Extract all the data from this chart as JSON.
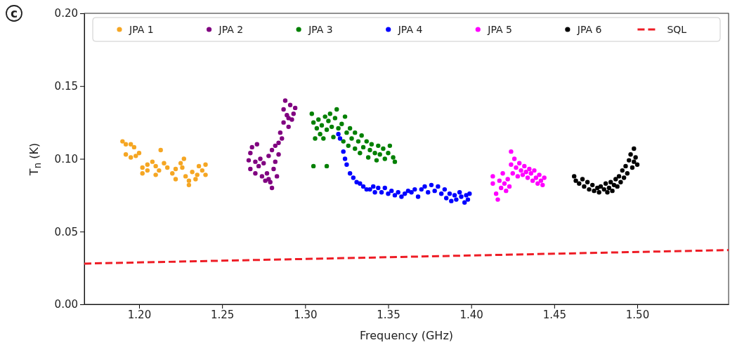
{
  "chart_data": {
    "type": "scatter",
    "xlabel": "Frequency (GHz)",
    "ylabel": "T$_{n}$ (K)",
    "annotations": [
      "c"
    ],
    "xlim": [
      1.167,
      1.555
    ],
    "ylim": [
      0,
      0.2
    ],
    "xticks": [
      {
        "value": 1.2,
        "label": "1.20"
      },
      {
        "value": 1.25,
        "label": "1.25"
      },
      {
        "value": 1.3,
        "label": "1.30"
      },
      {
        "value": 1.35,
        "label": "1.35"
      },
      {
        "value": 1.4,
        "label": "1.40"
      },
      {
        "value": 1.45,
        "label": "1.45"
      },
      {
        "value": 1.5,
        "label": "1.50"
      }
    ],
    "yticks": [
      {
        "value": 0,
        "label": "0.00"
      },
      {
        "value": 0.05,
        "label": "0.05"
      },
      {
        "value": 0.1,
        "label": "0.10"
      },
      {
        "value": 0.15,
        "label": "0.15"
      },
      {
        "value": 0.2,
        "label": "0.20"
      }
    ],
    "legend": "top",
    "marker": "circle",
    "series": [
      {
        "name": "JPA 1",
        "color": "#f5a623",
        "x": [
          1.19,
          1.192,
          1.195,
          1.197,
          1.192,
          1.195,
          1.198,
          1.2,
          1.202,
          1.202,
          1.205,
          1.205,
          1.208,
          1.21,
          1.21,
          1.212,
          1.213,
          1.215,
          1.217,
          1.22,
          1.222,
          1.222,
          1.225,
          1.226,
          1.227,
          1.228,
          1.23,
          1.23,
          1.232,
          1.234,
          1.235,
          1.236,
          1.238,
          1.24,
          1.24
        ],
        "values": [
          0.112,
          0.11,
          0.11,
          0.108,
          0.103,
          0.101,
          0.102,
          0.104,
          0.094,
          0.09,
          0.092,
          0.096,
          0.098,
          0.089,
          0.095,
          0.092,
          0.106,
          0.097,
          0.094,
          0.09,
          0.086,
          0.093,
          0.097,
          0.094,
          0.1,
          0.088,
          0.082,
          0.085,
          0.091,
          0.086,
          0.089,
          0.095,
          0.092,
          0.096,
          0.089
        ]
      },
      {
        "name": "JPA 2",
        "color": "#800080",
        "x": [
          1.266,
          1.267,
          1.267,
          1.268,
          1.27,
          1.27,
          1.271,
          1.272,
          1.273,
          1.274,
          1.275,
          1.276,
          1.277,
          1.278,
          1.278,
          1.279,
          1.28,
          1.28,
          1.281,
          1.282,
          1.282,
          1.283,
          1.284,
          1.284,
          1.285,
          1.286,
          1.287,
          1.287,
          1.288,
          1.289,
          1.29,
          1.29,
          1.291,
          1.292,
          1.293,
          1.294
        ],
        "values": [
          0.099,
          0.104,
          0.093,
          0.108,
          0.098,
          0.09,
          0.11,
          0.095,
          0.1,
          0.088,
          0.097,
          0.085,
          0.09,
          0.086,
          0.102,
          0.084,
          0.08,
          0.106,
          0.093,
          0.098,
          0.109,
          0.088,
          0.103,
          0.111,
          0.118,
          0.114,
          0.125,
          0.134,
          0.14,
          0.13,
          0.122,
          0.128,
          0.137,
          0.127,
          0.131,
          0.135
        ]
      },
      {
        "name": "JPA 3",
        "color": "#008000",
        "x": [
          1.304,
          1.305,
          1.306,
          1.307,
          1.308,
          1.309,
          1.31,
          1.311,
          1.312,
          1.313,
          1.314,
          1.315,
          1.316,
          1.317,
          1.318,
          1.319,
          1.32,
          1.322,
          1.323,
          1.324,
          1.325,
          1.326,
          1.327,
          1.328,
          1.33,
          1.33,
          1.332,
          1.333,
          1.334,
          1.335,
          1.337,
          1.338,
          1.339,
          1.34,
          1.342,
          1.343,
          1.344,
          1.345,
          1.347,
          1.348,
          1.35,
          1.351,
          1.353,
          1.354,
          1.305,
          1.313
        ],
        "values": [
          0.131,
          0.125,
          0.114,
          0.121,
          0.127,
          0.117,
          0.123,
          0.114,
          0.129,
          0.12,
          0.126,
          0.131,
          0.122,
          0.115,
          0.128,
          0.134,
          0.121,
          0.124,
          0.112,
          0.129,
          0.118,
          0.109,
          0.121,
          0.114,
          0.107,
          0.118,
          0.112,
          0.104,
          0.116,
          0.108,
          0.112,
          0.101,
          0.106,
          0.11,
          0.104,
          0.099,
          0.109,
          0.103,
          0.107,
          0.1,
          0.104,
          0.109,
          0.101,
          0.098,
          0.095,
          0.095
        ]
      },
      {
        "name": "JPA 4",
        "color": "#0000ff",
        "x": [
          1.32,
          1.321,
          1.323,
          1.324,
          1.325,
          1.327,
          1.329,
          1.331,
          1.333,
          1.335,
          1.337,
          1.339,
          1.341,
          1.342,
          1.344,
          1.346,
          1.348,
          1.35,
          1.352,
          1.354,
          1.356,
          1.358,
          1.36,
          1.362,
          1.364,
          1.366,
          1.368,
          1.37,
          1.372,
          1.374,
          1.376,
          1.378,
          1.38,
          1.382,
          1.384,
          1.385,
          1.387,
          1.388,
          1.39,
          1.391,
          1.393,
          1.394,
          1.396,
          1.397,
          1.398,
          1.399
        ],
        "values": [
          0.117,
          0.114,
          0.105,
          0.1,
          0.096,
          0.09,
          0.087,
          0.084,
          0.083,
          0.081,
          0.079,
          0.079,
          0.081,
          0.077,
          0.08,
          0.077,
          0.08,
          0.076,
          0.078,
          0.075,
          0.077,
          0.074,
          0.076,
          0.078,
          0.077,
          0.079,
          0.074,
          0.079,
          0.081,
          0.077,
          0.082,
          0.078,
          0.081,
          0.076,
          0.079,
          0.073,
          0.076,
          0.071,
          0.075,
          0.072,
          0.077,
          0.074,
          0.07,
          0.075,
          0.072,
          0.076
        ]
      },
      {
        "name": "JPA 5",
        "color": "#ff00ff",
        "x": [
          1.413,
          1.413,
          1.415,
          1.416,
          1.417,
          1.418,
          1.419,
          1.42,
          1.421,
          1.422,
          1.423,
          1.424,
          1.424,
          1.425,
          1.426,
          1.427,
          1.428,
          1.429,
          1.43,
          1.431,
          1.432,
          1.433,
          1.434,
          1.435,
          1.436,
          1.437,
          1.438,
          1.439,
          1.44,
          1.441,
          1.442,
          1.443,
          1.444
        ],
        "values": [
          0.088,
          0.083,
          0.076,
          0.072,
          0.085,
          0.08,
          0.09,
          0.083,
          0.078,
          0.086,
          0.081,
          0.096,
          0.105,
          0.09,
          0.1,
          0.094,
          0.088,
          0.097,
          0.092,
          0.089,
          0.095,
          0.091,
          0.087,
          0.093,
          0.09,
          0.085,
          0.092,
          0.087,
          0.083,
          0.089,
          0.085,
          0.082,
          0.087
        ]
      },
      {
        "name": "JPA 6",
        "color": "#000000",
        "x": [
          1.462,
          1.463,
          1.465,
          1.467,
          1.468,
          1.47,
          1.471,
          1.473,
          1.474,
          1.476,
          1.477,
          1.478,
          1.48,
          1.481,
          1.482,
          1.483,
          1.484,
          1.485,
          1.486,
          1.487,
          1.488,
          1.489,
          1.49,
          1.491,
          1.492,
          1.493,
          1.494,
          1.495,
          1.496,
          1.497,
          1.498,
          1.498,
          1.499,
          1.5
        ],
        "values": [
          0.088,
          0.085,
          0.083,
          0.086,
          0.081,
          0.084,
          0.079,
          0.082,
          0.078,
          0.08,
          0.077,
          0.081,
          0.079,
          0.083,
          0.077,
          0.08,
          0.084,
          0.078,
          0.082,
          0.086,
          0.081,
          0.088,
          0.084,
          0.092,
          0.087,
          0.095,
          0.09,
          0.099,
          0.103,
          0.094,
          0.107,
          0.098,
          0.101,
          0.096
        ]
      },
      {
        "name": "SQL",
        "type": "line",
        "color": "#ee1c25",
        "line_style": "dashed",
        "marker": "none",
        "x": [
          1.167,
          1.555
        ],
        "values": [
          0.028,
          0.0373
        ]
      }
    ]
  }
}
